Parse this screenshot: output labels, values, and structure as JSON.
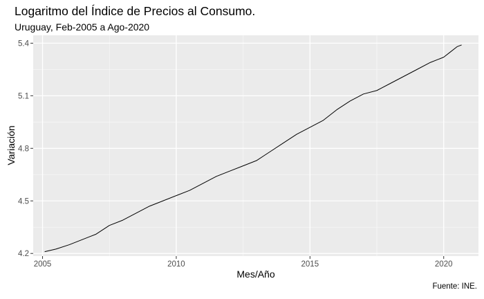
{
  "chart_data": {
    "type": "line",
    "title": "Logaritmo del Índice de Precios al Consumo.",
    "subtitle": "Uruguay, Feb-2005 a Ago-2020",
    "xlabel": "Mes/Año",
    "ylabel": "Variación",
    "caption": "Fuente: INE.",
    "xlim": [
      2004.65,
      2021.3
    ],
    "ylim": [
      4.185,
      5.445
    ],
    "x_ticks": [
      2005,
      2010,
      2015,
      2020
    ],
    "x_tick_labels": [
      "2005",
      "2010",
      "2015",
      "2020"
    ],
    "y_ticks": [
      4.2,
      4.5,
      4.8,
      5.1,
      5.4
    ],
    "y_tick_labels": [
      "4.2",
      "4.5",
      "4.8",
      "5.1",
      "5.4"
    ],
    "grid": true,
    "series": [
      {
        "line_color": "#000000",
        "x": [
          2005.08,
          2005.5,
          2006.0,
          2006.5,
          2007.0,
          2007.5,
          2008.0,
          2008.5,
          2009.0,
          2009.5,
          2010.0,
          2010.5,
          2011.0,
          2011.5,
          2012.0,
          2012.5,
          2013.0,
          2013.5,
          2014.0,
          2014.5,
          2015.0,
          2015.5,
          2016.0,
          2016.5,
          2017.0,
          2017.5,
          2018.0,
          2018.5,
          2019.0,
          2019.5,
          2020.0,
          2020.25,
          2020.5,
          2020.67
        ],
        "y": [
          4.21,
          4.225,
          4.25,
          4.28,
          4.31,
          4.36,
          4.39,
          4.43,
          4.47,
          4.5,
          4.53,
          4.56,
          4.6,
          4.64,
          4.67,
          4.7,
          4.73,
          4.78,
          4.83,
          4.88,
          4.92,
          4.96,
          5.02,
          5.07,
          5.11,
          5.13,
          5.17,
          5.21,
          5.25,
          5.29,
          5.32,
          5.35,
          5.38,
          5.39
        ]
      }
    ]
  }
}
